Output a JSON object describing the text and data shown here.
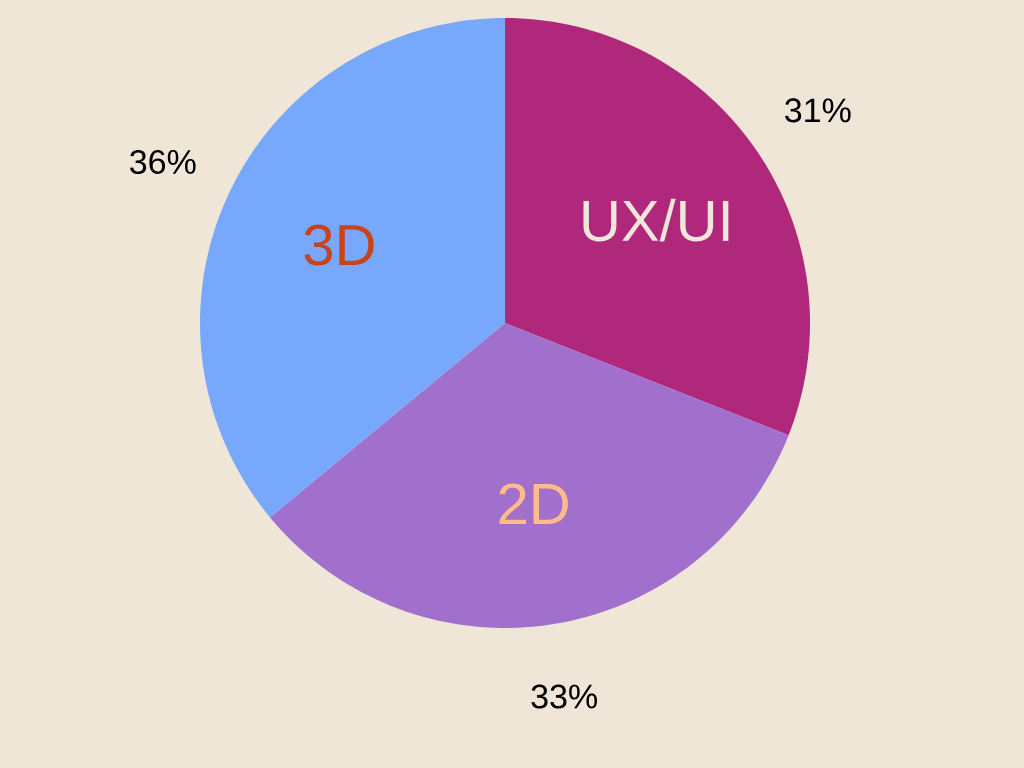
{
  "chart_data": {
    "type": "pie",
    "categories": [
      "UX/UI",
      "2D",
      "3D"
    ],
    "values": [
      31,
      33,
      36
    ],
    "colors": [
      "#b0287c",
      "#a070cc",
      "#78a8fc"
    ],
    "value_labels": [
      "31%",
      "33%",
      "36%"
    ]
  }
}
